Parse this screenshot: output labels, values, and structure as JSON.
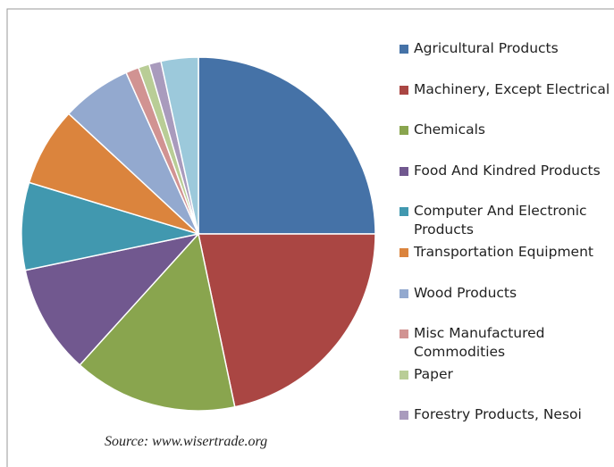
{
  "chart_data": {
    "type": "pie",
    "categories": [
      "Agricultural Products",
      "Machinery, Except Electrical",
      "Chemicals",
      "Food And Kindred Products",
      "Computer And Electronic Products",
      "Transportation Equipment",
      "Wood Products",
      "Misc Manufactured Commodities",
      "Paper",
      "Forestry Products, Nesoi",
      null
    ],
    "values": [
      25,
      21.7,
      15,
      10,
      8,
      7.2,
      6.4,
      1.2,
      1,
      1.1,
      3.4
    ],
    "colors": [
      "#4572A7",
      "#AA4643",
      "#89A54E",
      "#71588F",
      "#4198AF",
      "#DB843D",
      "#93A9CF",
      "#D19392",
      "#B9CD96",
      "#A99BBD",
      "#9CC9DB"
    ],
    "source": "Source: www.wisertrade.org"
  }
}
